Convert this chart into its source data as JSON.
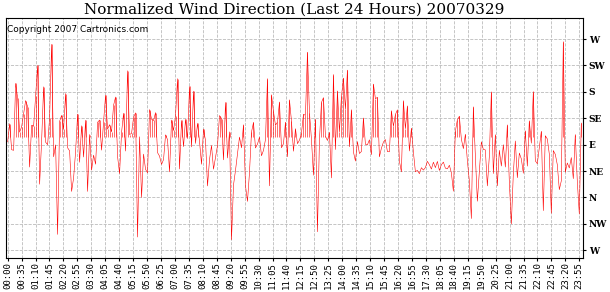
{
  "title": "Normalized Wind Direction (Last 24 Hours) 20070329",
  "copyright_text": "Copyright 2007 Cartronics.com",
  "line_color": "#ff0000",
  "bg_color": "#ffffff",
  "plot_bg_color": "#ffffff",
  "grid_color": "#bbbbbb",
  "ytick_labels": [
    "W",
    "SW",
    "S",
    "SE",
    "E",
    "NE",
    "N",
    "NW",
    "W"
  ],
  "ytick_values": [
    8,
    7,
    6,
    5,
    4,
    3,
    2,
    1,
    0
  ],
  "ylim": [
    -0.3,
    8.8
  ],
  "title_fontsize": 11,
  "tick_fontsize": 6.5,
  "copyright_fontsize": 6.5,
  "xtick_labels": [
    "00:00",
    "00:35",
    "01:10",
    "01:45",
    "02:20",
    "02:55",
    "03:30",
    "04:05",
    "04:40",
    "05:15",
    "05:50",
    "06:25",
    "07:00",
    "07:35",
    "08:10",
    "08:45",
    "09:20",
    "09:55",
    "10:30",
    "11:05",
    "11:40",
    "12:15",
    "12:50",
    "13:25",
    "14:00",
    "14:35",
    "15:10",
    "15:45",
    "16:20",
    "16:55",
    "17:30",
    "18:05",
    "18:40",
    "19:15",
    "19:50",
    "20:25",
    "21:00",
    "21:35",
    "22:10",
    "22:45",
    "23:20",
    "23:55"
  ]
}
